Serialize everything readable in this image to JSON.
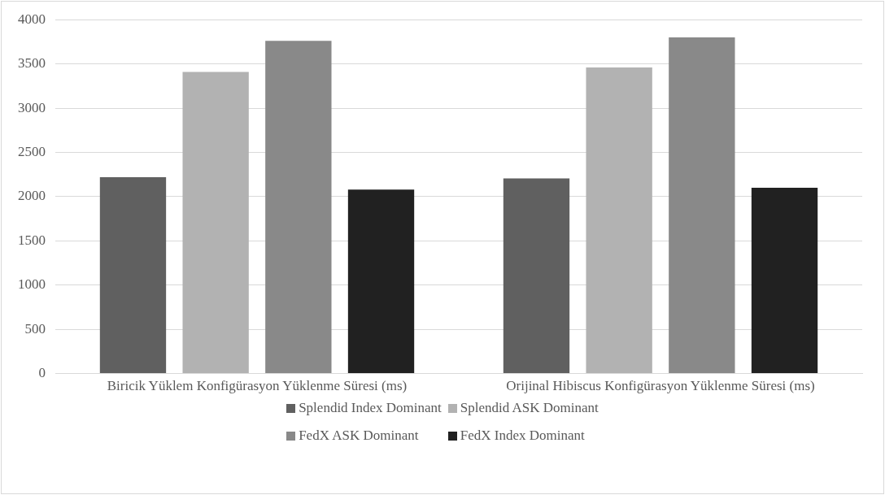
{
  "chart_data": {
    "type": "bar",
    "categories": [
      "Biricik Yüklem Konfigürasyon Yüklenme Süresi (ms)",
      "Orijinal Hibiscus Konfigürasyon Yüklenme Süresi (ms)"
    ],
    "series": [
      {
        "name": "Splendid Index Dominant",
        "color": "#606060",
        "values": [
          2220,
          2205
        ]
      },
      {
        "name": "Splendid ASK Dominant",
        "color": "#b2b2b2",
        "values": [
          3410,
          3460
        ]
      },
      {
        "name": "FedX ASK Dominant",
        "color": "#898989",
        "values": [
          3760,
          3800
        ]
      },
      {
        "name": "FedX Index Dominant",
        "color": "#212121",
        "values": [
          2080,
          2100
        ]
      }
    ],
    "ylim": [
      0,
      4000
    ],
    "yticks": [
      0,
      500,
      1000,
      1500,
      2000,
      2500,
      3000,
      3500,
      4000
    ],
    "grid": "y",
    "legend": "bottom"
  }
}
